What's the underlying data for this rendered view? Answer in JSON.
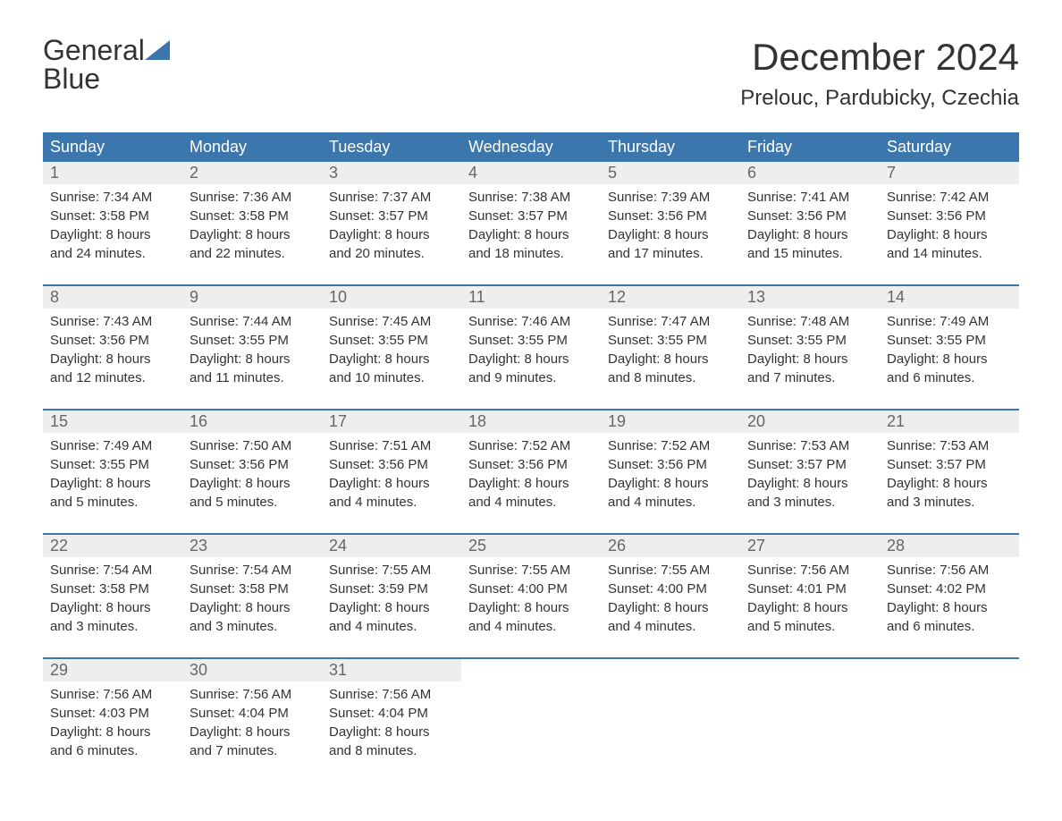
{
  "logo": {
    "word1": "General",
    "word2": "Blue"
  },
  "title": "December 2024",
  "location": "Prelouc, Pardubicky, Czechia",
  "colors": {
    "brand_blue": "#3b77ad",
    "header_text": "#ffffff",
    "daynum_bg": "#eeeeee",
    "daynum_text": "#666666",
    "body_text": "#333333",
    "page_bg": "#ffffff"
  },
  "day_headers": [
    "Sunday",
    "Monday",
    "Tuesday",
    "Wednesday",
    "Thursday",
    "Friday",
    "Saturday"
  ],
  "weeks": [
    [
      {
        "n": "1",
        "sr": "Sunrise: 7:34 AM",
        "ss": "Sunset: 3:58 PM",
        "dl1": "Daylight: 8 hours",
        "dl2": "and 24 minutes."
      },
      {
        "n": "2",
        "sr": "Sunrise: 7:36 AM",
        "ss": "Sunset: 3:58 PM",
        "dl1": "Daylight: 8 hours",
        "dl2": "and 22 minutes."
      },
      {
        "n": "3",
        "sr": "Sunrise: 7:37 AM",
        "ss": "Sunset: 3:57 PM",
        "dl1": "Daylight: 8 hours",
        "dl2": "and 20 minutes."
      },
      {
        "n": "4",
        "sr": "Sunrise: 7:38 AM",
        "ss": "Sunset: 3:57 PM",
        "dl1": "Daylight: 8 hours",
        "dl2": "and 18 minutes."
      },
      {
        "n": "5",
        "sr": "Sunrise: 7:39 AM",
        "ss": "Sunset: 3:56 PM",
        "dl1": "Daylight: 8 hours",
        "dl2": "and 17 minutes."
      },
      {
        "n": "6",
        "sr": "Sunrise: 7:41 AM",
        "ss": "Sunset: 3:56 PM",
        "dl1": "Daylight: 8 hours",
        "dl2": "and 15 minutes."
      },
      {
        "n": "7",
        "sr": "Sunrise: 7:42 AM",
        "ss": "Sunset: 3:56 PM",
        "dl1": "Daylight: 8 hours",
        "dl2": "and 14 minutes."
      }
    ],
    [
      {
        "n": "8",
        "sr": "Sunrise: 7:43 AM",
        "ss": "Sunset: 3:56 PM",
        "dl1": "Daylight: 8 hours",
        "dl2": "and 12 minutes."
      },
      {
        "n": "9",
        "sr": "Sunrise: 7:44 AM",
        "ss": "Sunset: 3:55 PM",
        "dl1": "Daylight: 8 hours",
        "dl2": "and 11 minutes."
      },
      {
        "n": "10",
        "sr": "Sunrise: 7:45 AM",
        "ss": "Sunset: 3:55 PM",
        "dl1": "Daylight: 8 hours",
        "dl2": "and 10 minutes."
      },
      {
        "n": "11",
        "sr": "Sunrise: 7:46 AM",
        "ss": "Sunset: 3:55 PM",
        "dl1": "Daylight: 8 hours",
        "dl2": "and 9 minutes."
      },
      {
        "n": "12",
        "sr": "Sunrise: 7:47 AM",
        "ss": "Sunset: 3:55 PM",
        "dl1": "Daylight: 8 hours",
        "dl2": "and 8 minutes."
      },
      {
        "n": "13",
        "sr": "Sunrise: 7:48 AM",
        "ss": "Sunset: 3:55 PM",
        "dl1": "Daylight: 8 hours",
        "dl2": "and 7 minutes."
      },
      {
        "n": "14",
        "sr": "Sunrise: 7:49 AM",
        "ss": "Sunset: 3:55 PM",
        "dl1": "Daylight: 8 hours",
        "dl2": "and 6 minutes."
      }
    ],
    [
      {
        "n": "15",
        "sr": "Sunrise: 7:49 AM",
        "ss": "Sunset: 3:55 PM",
        "dl1": "Daylight: 8 hours",
        "dl2": "and 5 minutes."
      },
      {
        "n": "16",
        "sr": "Sunrise: 7:50 AM",
        "ss": "Sunset: 3:56 PM",
        "dl1": "Daylight: 8 hours",
        "dl2": "and 5 minutes."
      },
      {
        "n": "17",
        "sr": "Sunrise: 7:51 AM",
        "ss": "Sunset: 3:56 PM",
        "dl1": "Daylight: 8 hours",
        "dl2": "and 4 minutes."
      },
      {
        "n": "18",
        "sr": "Sunrise: 7:52 AM",
        "ss": "Sunset: 3:56 PM",
        "dl1": "Daylight: 8 hours",
        "dl2": "and 4 minutes."
      },
      {
        "n": "19",
        "sr": "Sunrise: 7:52 AM",
        "ss": "Sunset: 3:56 PM",
        "dl1": "Daylight: 8 hours",
        "dl2": "and 4 minutes."
      },
      {
        "n": "20",
        "sr": "Sunrise: 7:53 AM",
        "ss": "Sunset: 3:57 PM",
        "dl1": "Daylight: 8 hours",
        "dl2": "and 3 minutes."
      },
      {
        "n": "21",
        "sr": "Sunrise: 7:53 AM",
        "ss": "Sunset: 3:57 PM",
        "dl1": "Daylight: 8 hours",
        "dl2": "and 3 minutes."
      }
    ],
    [
      {
        "n": "22",
        "sr": "Sunrise: 7:54 AM",
        "ss": "Sunset: 3:58 PM",
        "dl1": "Daylight: 8 hours",
        "dl2": "and 3 minutes."
      },
      {
        "n": "23",
        "sr": "Sunrise: 7:54 AM",
        "ss": "Sunset: 3:58 PM",
        "dl1": "Daylight: 8 hours",
        "dl2": "and 3 minutes."
      },
      {
        "n": "24",
        "sr": "Sunrise: 7:55 AM",
        "ss": "Sunset: 3:59 PM",
        "dl1": "Daylight: 8 hours",
        "dl2": "and 4 minutes."
      },
      {
        "n": "25",
        "sr": "Sunrise: 7:55 AM",
        "ss": "Sunset: 4:00 PM",
        "dl1": "Daylight: 8 hours",
        "dl2": "and 4 minutes."
      },
      {
        "n": "26",
        "sr": "Sunrise: 7:55 AM",
        "ss": "Sunset: 4:00 PM",
        "dl1": "Daylight: 8 hours",
        "dl2": "and 4 minutes."
      },
      {
        "n": "27",
        "sr": "Sunrise: 7:56 AM",
        "ss": "Sunset: 4:01 PM",
        "dl1": "Daylight: 8 hours",
        "dl2": "and 5 minutes."
      },
      {
        "n": "28",
        "sr": "Sunrise: 7:56 AM",
        "ss": "Sunset: 4:02 PM",
        "dl1": "Daylight: 8 hours",
        "dl2": "and 6 minutes."
      }
    ],
    [
      {
        "n": "29",
        "sr": "Sunrise: 7:56 AM",
        "ss": "Sunset: 4:03 PM",
        "dl1": "Daylight: 8 hours",
        "dl2": "and 6 minutes."
      },
      {
        "n": "30",
        "sr": "Sunrise: 7:56 AM",
        "ss": "Sunset: 4:04 PM",
        "dl1": "Daylight: 8 hours",
        "dl2": "and 7 minutes."
      },
      {
        "n": "31",
        "sr": "Sunrise: 7:56 AM",
        "ss": "Sunset: 4:04 PM",
        "dl1": "Daylight: 8 hours",
        "dl2": "and 8 minutes."
      },
      null,
      null,
      null,
      null
    ]
  ]
}
